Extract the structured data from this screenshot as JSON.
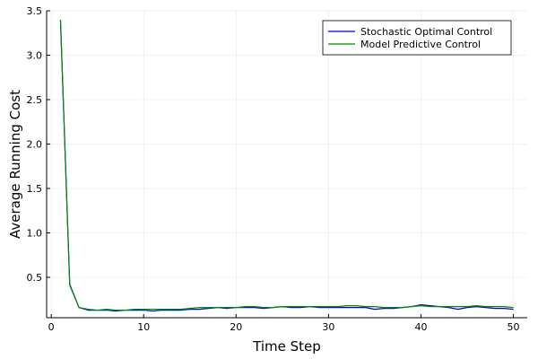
{
  "chart_data": {
    "type": "line",
    "xlabel": "Time Step",
    "ylabel": "Average Running Cost",
    "xlim": [
      -0.5,
      51.5
    ],
    "ylim": [
      0.045,
      3.5
    ],
    "xticks": [
      0,
      10,
      20,
      30,
      40,
      50
    ],
    "yticks": [
      0.5,
      1.0,
      1.5,
      2.0,
      2.5,
      3.0,
      3.5
    ],
    "ytick_labels": [
      "0.5",
      "1.0",
      "1.5",
      "2.0",
      "2.5",
      "3.0",
      "3.5"
    ],
    "grid": true,
    "legend_position": "top-right",
    "series": [
      {
        "name": "Stochastic Optimal Control",
        "color": "#0000cc",
        "x": [
          1,
          2,
          3,
          4,
          5,
          6,
          7,
          8,
          9,
          10,
          11,
          12,
          13,
          14,
          15,
          16,
          17,
          18,
          19,
          20,
          21,
          22,
          23,
          24,
          25,
          26,
          27,
          28,
          29,
          30,
          31,
          32,
          33,
          34,
          35,
          36,
          37,
          38,
          39,
          40,
          41,
          42,
          43,
          44,
          45,
          46,
          47,
          48,
          49,
          50
        ],
        "y": [
          3.39,
          0.42,
          0.16,
          0.13,
          0.13,
          0.13,
          0.12,
          0.13,
          0.13,
          0.13,
          0.12,
          0.13,
          0.13,
          0.13,
          0.14,
          0.14,
          0.15,
          0.16,
          0.15,
          0.16,
          0.16,
          0.16,
          0.15,
          0.16,
          0.17,
          0.16,
          0.16,
          0.17,
          0.16,
          0.16,
          0.16,
          0.16,
          0.16,
          0.16,
          0.14,
          0.15,
          0.15,
          0.16,
          0.17,
          0.19,
          0.18,
          0.17,
          0.16,
          0.14,
          0.16,
          0.17,
          0.16,
          0.15,
          0.15,
          0.14
        ]
      },
      {
        "name": "Model Predictive Control",
        "color": "#008a00",
        "x": [
          1,
          2,
          3,
          4,
          5,
          6,
          7,
          8,
          9,
          10,
          11,
          12,
          13,
          14,
          15,
          16,
          17,
          18,
          19,
          20,
          21,
          22,
          23,
          24,
          25,
          26,
          27,
          28,
          29,
          30,
          31,
          32,
          33,
          34,
          35,
          36,
          37,
          38,
          39,
          40,
          41,
          42,
          43,
          44,
          45,
          46,
          47,
          48,
          49,
          50
        ],
        "y": [
          3.4,
          0.41,
          0.16,
          0.14,
          0.13,
          0.14,
          0.13,
          0.13,
          0.14,
          0.14,
          0.14,
          0.14,
          0.14,
          0.14,
          0.15,
          0.16,
          0.16,
          0.16,
          0.16,
          0.16,
          0.17,
          0.17,
          0.16,
          0.16,
          0.17,
          0.17,
          0.17,
          0.17,
          0.17,
          0.17,
          0.17,
          0.18,
          0.18,
          0.17,
          0.17,
          0.16,
          0.16,
          0.16,
          0.17,
          0.18,
          0.17,
          0.17,
          0.17,
          0.17,
          0.17,
          0.18,
          0.17,
          0.17,
          0.17,
          0.16
        ]
      }
    ]
  }
}
